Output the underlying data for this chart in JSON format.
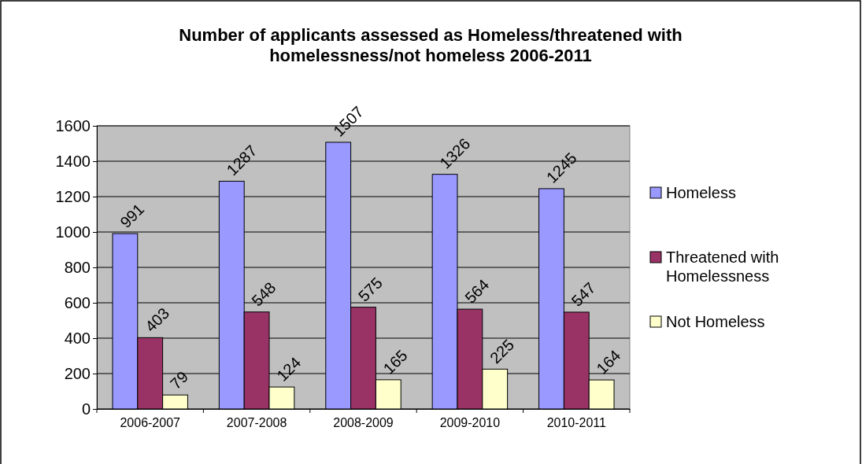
{
  "chart_data": {
    "type": "bar",
    "title": "Number of applicants assessed as Homeless/threatened with homelessness/not homeless 2006-2011",
    "categories": [
      "2006-2007",
      "2007-2008",
      "2008-2009",
      "2009-2010",
      "2010-2011"
    ],
    "series": [
      {
        "name": "Homeless",
        "color": "#9999ff",
        "values": [
          991,
          1287,
          1507,
          1326,
          1245
        ]
      },
      {
        "name": "Threatened with Homelessness",
        "color": "#993366",
        "values": [
          403,
          548,
          575,
          564,
          547
        ]
      },
      {
        "name": "Not Homeless",
        "color": "#ffffcc",
        "values": [
          79,
          124,
          165,
          225,
          164
        ]
      }
    ],
    "ylim": [
      0,
      1600
    ],
    "yticks": [
      0,
      200,
      400,
      600,
      800,
      1000,
      1200,
      1400,
      1600
    ],
    "grid": "y",
    "legend": "right",
    "data_labels": true
  }
}
